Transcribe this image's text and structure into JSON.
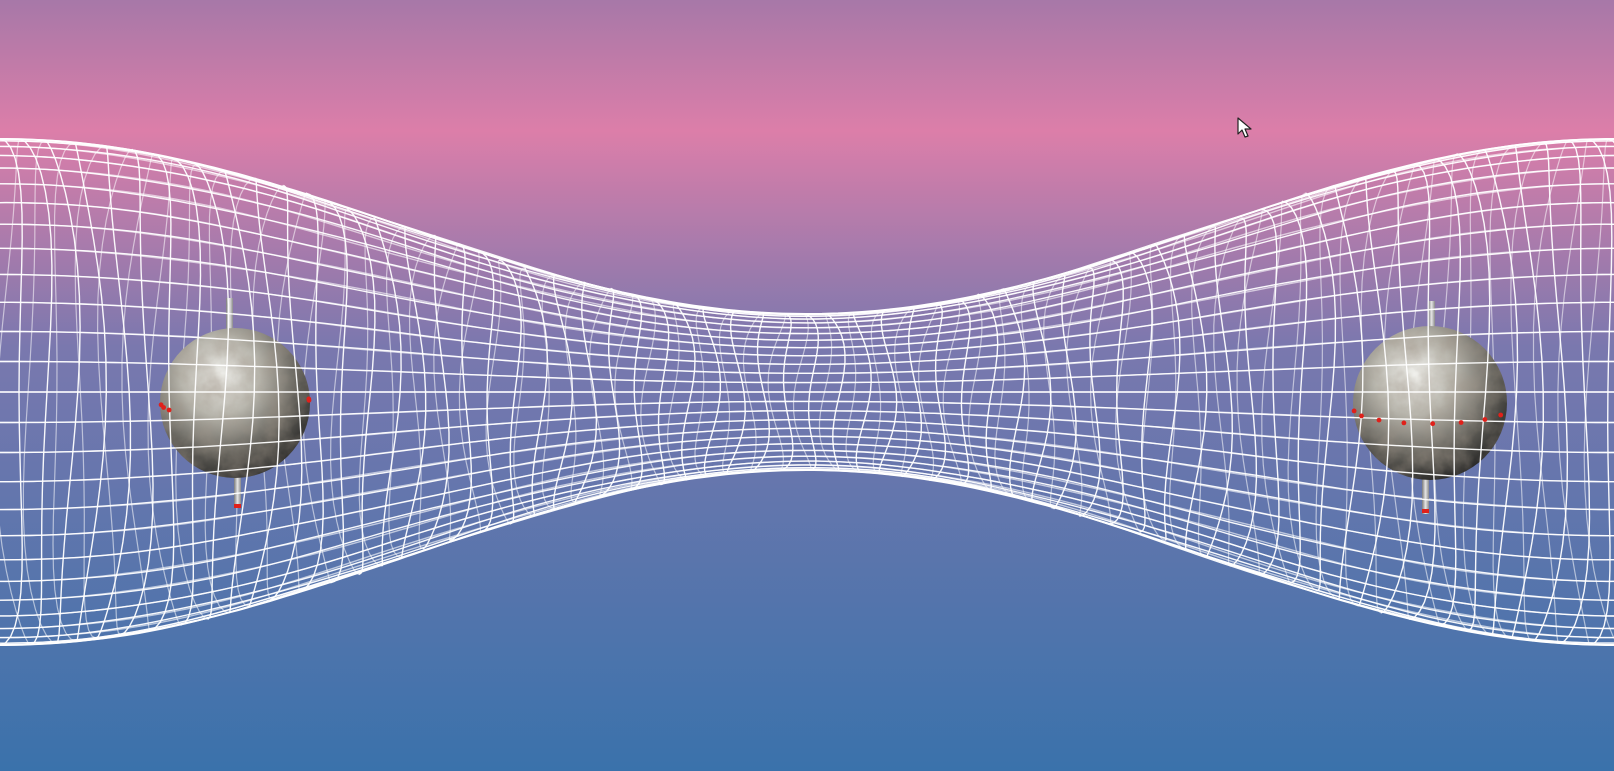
{
  "scene": {
    "description_label": "",
    "background": {
      "top_color": "#a778a8",
      "band_color": "#dc7ea9",
      "mid_color": "#7a78ae",
      "bottom_color": "#3a72ab"
    },
    "mesh": {
      "line_color": "#ffffff",
      "longitudinal_lines": 52,
      "rings": 18
    },
    "spheres": [
      {
        "name": "left-sphere",
        "texture": "marble-gray"
      },
      {
        "name": "right-sphere",
        "texture": "marble-gray"
      }
    ],
    "marker_color": "#e0201a",
    "axis_color": "#bdbdbd",
    "cursor": {
      "icon": "arrow-pointer-icon"
    }
  }
}
